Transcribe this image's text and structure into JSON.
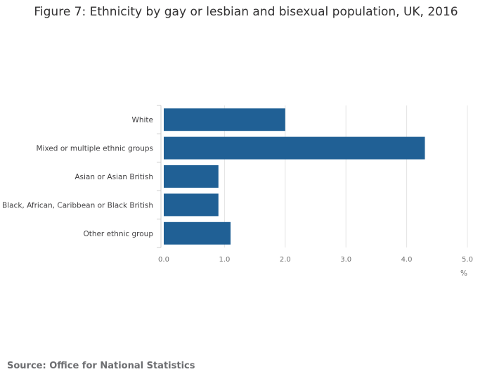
{
  "chart_data": {
    "type": "bar",
    "orientation": "horizontal",
    "title": "Figure 7: Ethnicity by gay or lesbian and bisexual population, UK, 2016",
    "categories": [
      "White",
      "Mixed or multiple ethnic groups",
      "Asian or Asian British",
      "Black, African, Caribbean or Black British",
      "Other ethnic group"
    ],
    "values": [
      2.0,
      4.3,
      0.9,
      0.9,
      1.1
    ],
    "xlabel": "%",
    "ylabel": "",
    "xlim": [
      0,
      5
    ],
    "x_ticks": [
      "0.0",
      "1.0",
      "2.0",
      "3.0",
      "4.0",
      "5.0"
    ],
    "grid": "vertical",
    "bar_color": "#206095",
    "legend": "none"
  },
  "source": "Source: Office for National Statistics"
}
